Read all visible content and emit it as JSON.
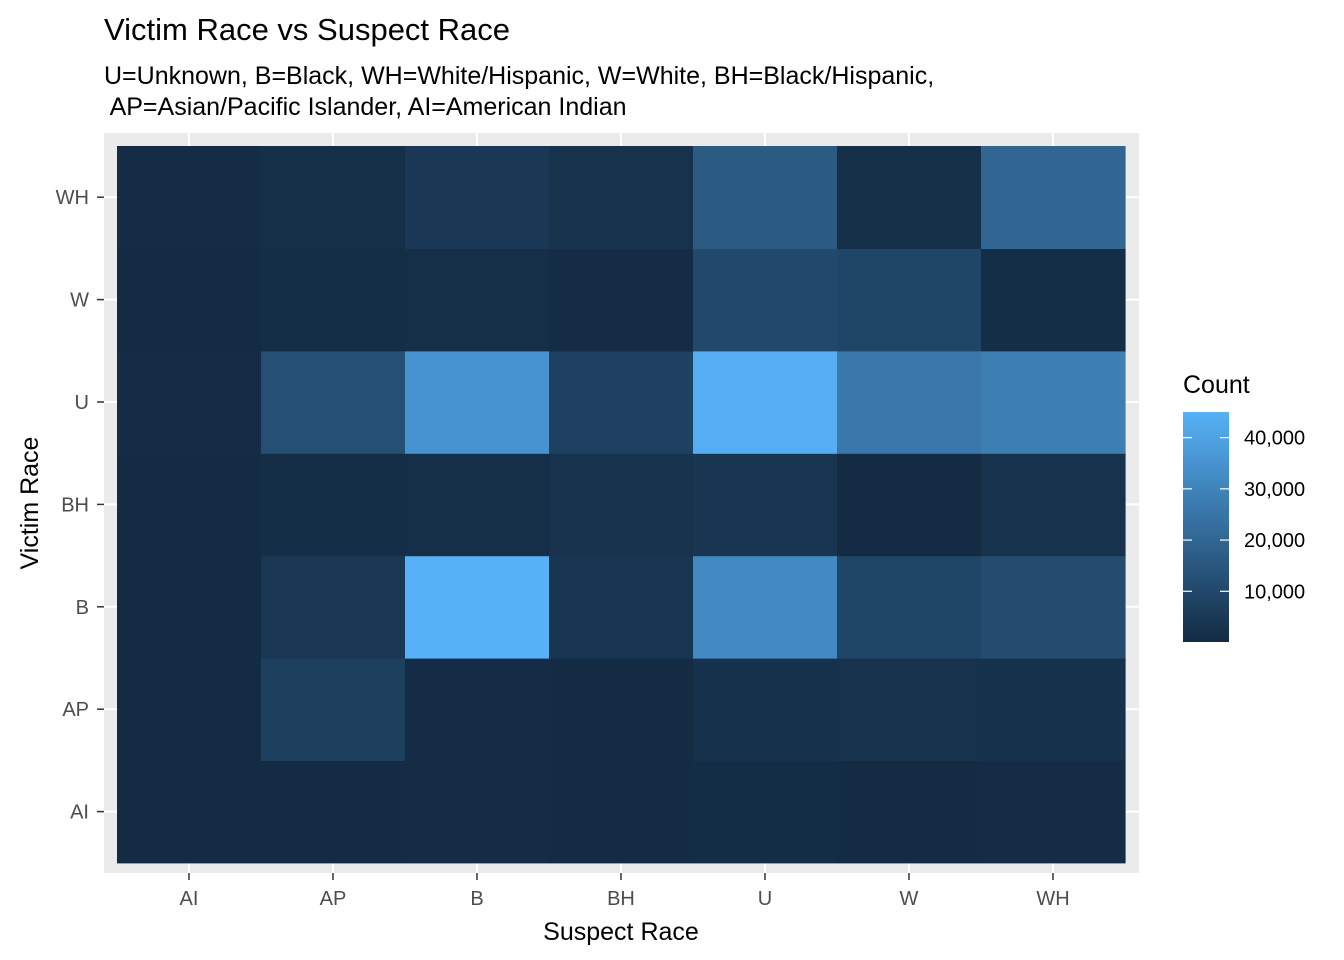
{
  "chart_data": {
    "type": "heatmap",
    "title": "Victim Race vs Suspect Race",
    "subtitle_lines": [
      "U=Unknown, B=Black, WH=White/Hispanic, W=White, BH=Black/Hispanic,",
      " AP=Asian/Pacific Islander, AI=American Indian"
    ],
    "xlabel": "Suspect Race",
    "ylabel": "Victim Race",
    "x_categories": [
      "AI",
      "AP",
      "B",
      "BH",
      "U",
      "W",
      "WH"
    ],
    "y_categories": [
      "AI",
      "AP",
      "B",
      "BH",
      "U",
      "W",
      "WH"
    ],
    "values": [
      [
        100,
        200,
        700,
        200,
        800,
        300,
        600
      ],
      [
        300,
        7000,
        500,
        400,
        2000,
        2500,
        2000
      ],
      [
        400,
        4000,
        45000,
        3500,
        32000,
        9000,
        11000
      ],
      [
        200,
        1000,
        1500,
        2500,
        3500,
        200,
        2500
      ],
      [
        600,
        12000,
        35000,
        7500,
        44000,
        26000,
        28000
      ],
      [
        300,
        1000,
        1500,
        600,
        10000,
        9000,
        1000
      ],
      [
        500,
        1500,
        4500,
        2500,
        16000,
        1500,
        20000
      ]
    ],
    "legend": {
      "title": "Count",
      "ticks": [
        10000,
        20000,
        30000,
        40000
      ],
      "tick_labels": [
        "10,000",
        "20,000",
        "30,000",
        "40,000"
      ],
      "min": 100,
      "max": 45000,
      "position": "right"
    },
    "colors": {
      "low": "#132B43",
      "high": "#56B1F7",
      "panel_background": "#EBEBEB",
      "grid": "#FFFFFF"
    },
    "grid": true
  }
}
